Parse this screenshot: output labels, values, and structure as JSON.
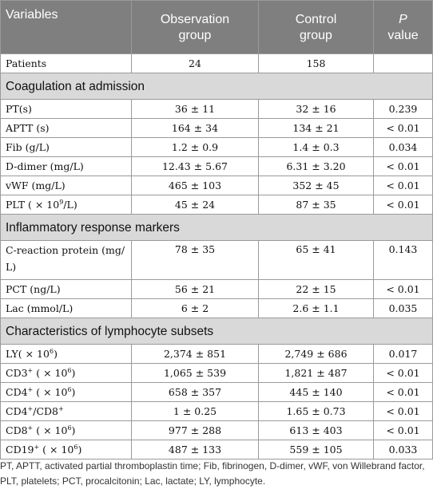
{
  "header": {
    "col_variables": "Variables",
    "col_observation_line1": "Observation",
    "col_observation_line2": "group",
    "col_control_line1": "Control",
    "col_control_line2": "group",
    "col_p_line1": "P",
    "col_p_line2": "value"
  },
  "patients": {
    "label": "Patients",
    "observation": "24",
    "control": "158",
    "p": ""
  },
  "sections": {
    "coagulation": "Coagulation at admission",
    "inflammatory": "Inflammatory response markers",
    "lymphocyte": "Characteristics of lymphocyte subsets"
  },
  "coagulation_rows": [
    {
      "label": "PT(s)",
      "observation": "36 ± 11",
      "control": "32 ± 16",
      "p": "0.239"
    },
    {
      "label": "APTT (s)",
      "observation": "164 ± 34",
      "control": "134 ± 21",
      "p": "< 0.01"
    },
    {
      "label": "Fib (g/L)",
      "observation": "1.2 ± 0.9",
      "control": "1.4 ± 0.3",
      "p": "0.034"
    },
    {
      "label": "D-dimer (mg/L)",
      "observation": "12.43 ± 5.67",
      "control": "6.31 ± 3.20",
      "p": "< 0.01"
    },
    {
      "label": "vWF (mg/L)",
      "observation": "465 ± 103",
      "control": "352 ± 45",
      "p": "< 0.01"
    },
    {
      "label_pre": "PLT ( × 10",
      "label_sup": "9",
      "label_post": "/L)",
      "observation": "45 ± 24",
      "control": "87 ± 35",
      "p": "< 0.01"
    }
  ],
  "inflammatory_rows": [
    {
      "label": "C-reaction protein (mg/ L)",
      "observation": "78 ± 35",
      "control": "65 ± 41",
      "p": "0.143"
    },
    {
      "label": "PCT (ng/L)",
      "observation": "56 ± 21",
      "control": "22 ± 15",
      "p": "< 0.01"
    },
    {
      "label": "Lac (mmol/L)",
      "observation": "6 ± 2",
      "control": "2.6 ± 1.1",
      "p": "0.035"
    }
  ],
  "lymphocyte_rows": [
    {
      "label_pre": "LY( × 10",
      "label_sup": "6",
      "label_post": ")",
      "observation": "2,374 ± 851",
      "control": "2,749 ± 686",
      "p": "0.017"
    },
    {
      "label_pre": "CD3",
      "label_sup": "+",
      "label_mid": " ( × 10",
      "label_sup2": "6",
      "label_post": ")",
      "observation": "1,065 ± 539",
      "control": "1,821 ± 487",
      "p": "< 0.01"
    },
    {
      "label_pre": "CD4",
      "label_sup": "+",
      "label_mid": " ( × 10",
      "label_sup2": "6",
      "label_post": ")",
      "observation": "658 ± 357",
      "control": "445 ± 140",
      "p": "< 0.01"
    },
    {
      "label_pre": "CD4",
      "label_sup": "+",
      "label_mid": "/CD8",
      "label_sup2": "+",
      "label_post": "",
      "observation": "1 ± 0.25",
      "control": "1.65 ± 0.73",
      "p": "< 0.01"
    },
    {
      "label_pre": "CD8",
      "label_sup": "+",
      "label_mid": " ( × 10",
      "label_sup2": "6",
      "label_post": ")",
      "observation": "977 ± 288",
      "control": "613 ± 403",
      "p": "< 0.01"
    },
    {
      "label_pre": "CD19",
      "label_sup": "+",
      "label_mid": " ( × 10",
      "label_sup2": "6",
      "label_post": ")",
      "observation": "487 ± 133",
      "control": "559 ± 105",
      "p": "0.033"
    }
  ],
  "footnote": "PT, APTT, activated partial thromboplastin time; Fib, fibrinogen, D-dimer, vWF, von Willebrand factor, PLT, platelets; PCT, procalcitonin; Lac, lactate; LY, lymphocyte."
}
